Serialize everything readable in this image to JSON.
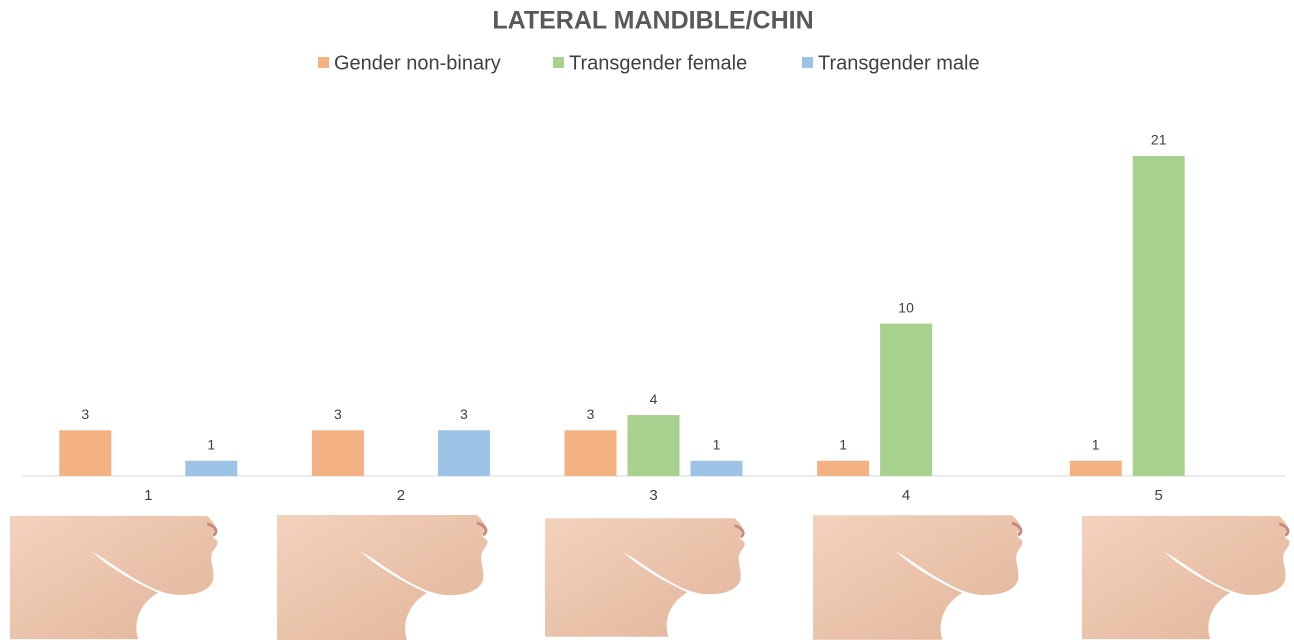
{
  "chart_data": {
    "type": "bar",
    "title": "LATERAL MANDIBLE/CHIN",
    "categories": [
      "1",
      "2",
      "3",
      "4",
      "5"
    ],
    "series": [
      {
        "name": "Gender non-binary",
        "color": "#f4b183",
        "values": [
          3,
          3,
          3,
          1,
          1
        ]
      },
      {
        "name": "Transgender female",
        "color": "#a9d18e",
        "values": [
          null,
          null,
          4,
          10,
          21
        ]
      },
      {
        "name": "Transgender male",
        "color": "#9dc3e6",
        "values": [
          1,
          3,
          1,
          null,
          null
        ]
      }
    ]
  }
}
